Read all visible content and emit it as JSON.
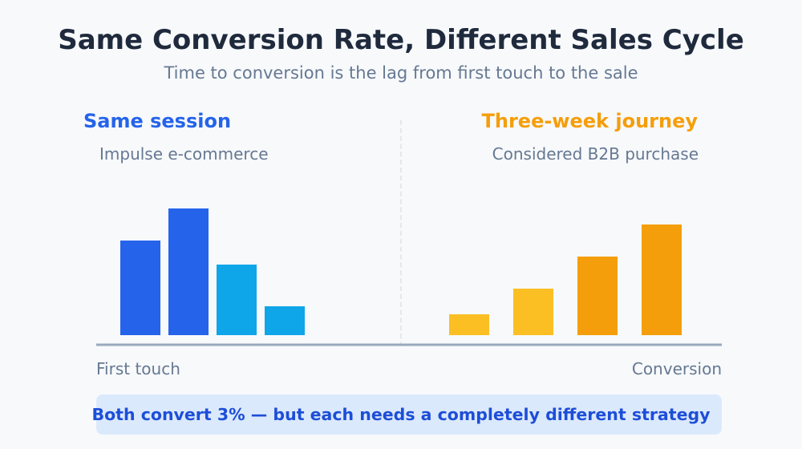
{
  "title": "Same Conversion Rate, Different Sales Cycle",
  "subtitle": "Time to conversion is the lag from first touch to the sale",
  "left_panel": {
    "heading": "Same session",
    "description": "Impulse e-commerce",
    "heading_color": "#2563eb"
  },
  "right_panel": {
    "heading": "Three-week journey",
    "description": "Considered B2B purchase",
    "heading_color": "#f59e0b"
  },
  "axis": {
    "start_label": "First touch",
    "end_label": "Conversion"
  },
  "callout": "Both convert 3% — but each needs a completely different strategy",
  "chart_data": {
    "type": "bar",
    "title": "",
    "series": [
      {
        "name": "Same session",
        "values": [
          118,
          158,
          88,
          36
        ],
        "colors": [
          "#2563eb",
          "#2563eb",
          "#0ea5e9",
          "#0ea5e9"
        ]
      },
      {
        "name": "Three-week journey",
        "values": [
          26,
          58,
          98,
          138
        ],
        "colors": [
          "#fbbf24",
          "#fbbf24",
          "#f59e0b",
          "#f59e0b"
        ]
      }
    ],
    "xlabel": "",
    "ylabel": "",
    "grid": false
  }
}
